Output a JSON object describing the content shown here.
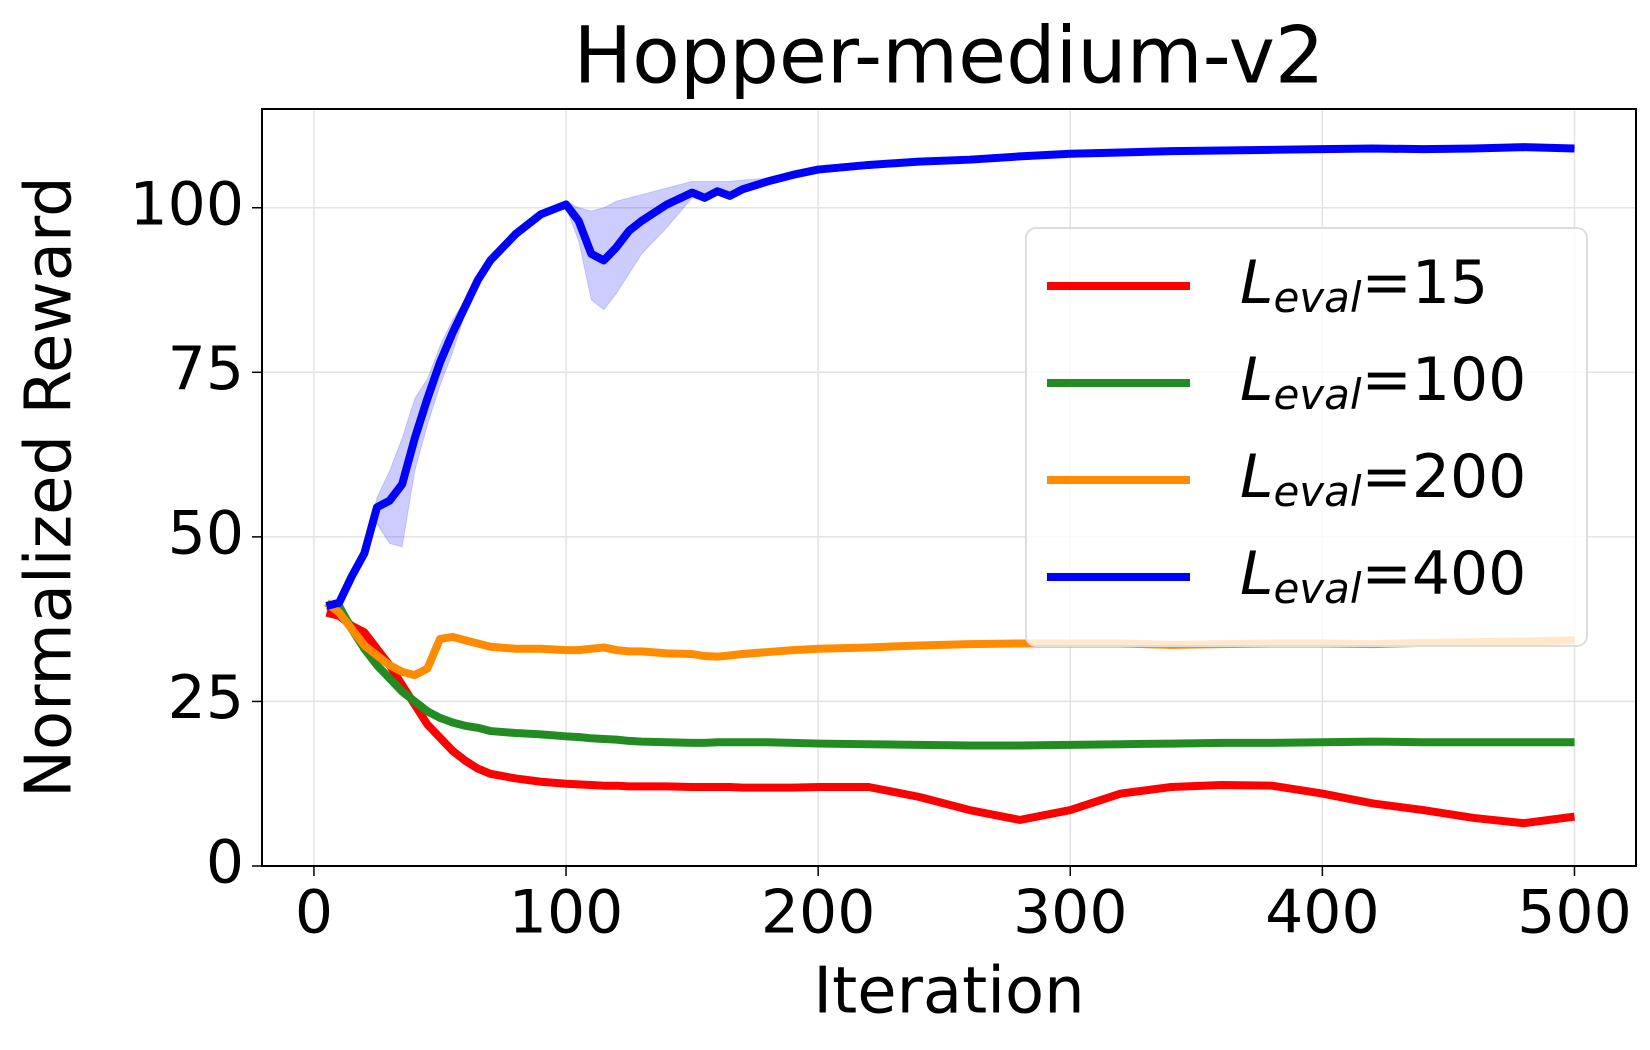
{
  "chart_data": {
    "type": "line",
    "title": "Hopper-medium-v2",
    "xlabel": "Iteration",
    "ylabel": "Normalized Reward",
    "x": [
      5,
      10,
      15,
      20,
      25,
      30,
      35,
      40,
      45,
      50,
      55,
      60,
      65,
      70,
      80,
      90,
      100,
      105,
      110,
      115,
      120,
      125,
      130,
      140,
      150,
      155,
      160,
      165,
      170,
      180,
      190,
      200,
      220,
      240,
      260,
      280,
      300,
      320,
      340,
      360,
      380,
      400,
      420,
      440,
      460,
      480,
      500
    ],
    "series": [
      {
        "name": "L_eval=15",
        "color": "#ff0000",
        "values": [
          38.5,
          38,
          36.5,
          35.5,
          33,
          30.5,
          27.5,
          24.5,
          21.5,
          19.5,
          17.5,
          16,
          14.8,
          14,
          13.3,
          12.8,
          12.5,
          12.4,
          12.3,
          12.2,
          12.2,
          12.1,
          12.1,
          12.1,
          12,
          12,
          12,
          12,
          11.9,
          11.9,
          11.9,
          12,
          12,
          10.5,
          8.5,
          7,
          8.5,
          11,
          12,
          12.3,
          12.2,
          11,
          9.5,
          8.5,
          7.3,
          6.5,
          7.5
        ]
      },
      {
        "name": "L_eval=100",
        "color": "#228b22",
        "values": [
          39.5,
          39.5,
          36,
          33,
          30.5,
          28.5,
          26.5,
          25,
          23.5,
          22.5,
          21.8,
          21.3,
          21,
          20.5,
          20.2,
          20,
          19.7,
          19.6,
          19.4,
          19.3,
          19.2,
          19,
          18.9,
          18.8,
          18.7,
          18.7,
          18.8,
          18.8,
          18.8,
          18.8,
          18.7,
          18.6,
          18.5,
          18.4,
          18.3,
          18.3,
          18.4,
          18.5,
          18.6,
          18.7,
          18.7,
          18.8,
          18.9,
          18.8,
          18.8,
          18.8,
          18.8
        ]
      },
      {
        "name": "L_eval=200",
        "color": "#ff8c00",
        "values": [
          40,
          38.5,
          36,
          33.5,
          32,
          30.5,
          29.5,
          29,
          30,
          34.5,
          34.8,
          34.3,
          33.8,
          33.3,
          33,
          33,
          32.8,
          32.8,
          33,
          33.2,
          32.8,
          32.6,
          32.6,
          32.3,
          32.2,
          31.9,
          31.8,
          32,
          32.2,
          32.5,
          32.8,
          33,
          33.2,
          33.5,
          33.7,
          33.8,
          33.8,
          33.8,
          33.6,
          33.7,
          33.8,
          33.8,
          33.7,
          33.9,
          34,
          34.1,
          34.3
        ]
      },
      {
        "name": "L_eval=400",
        "color": "#0000ff",
        "values": [
          39.5,
          40,
          44,
          47.5,
          54.5,
          55.5,
          58,
          65,
          71,
          76.5,
          81,
          85,
          89,
          92,
          96,
          99,
          100.5,
          98,
          93,
          92,
          94,
          96.5,
          98,
          100.5,
          102.3,
          101.5,
          102.5,
          101.8,
          102.8,
          104,
          105,
          105.8,
          106.5,
          107,
          107.3,
          107.8,
          108.2,
          108.4,
          108.6,
          108.7,
          108.8,
          108.9,
          109,
          108.9,
          109,
          109.2,
          109
        ],
        "lower": [
          39.5,
          40,
          44,
          47.5,
          52,
          49,
          48.5,
          60,
          67,
          73,
          78,
          84,
          88,
          91.5,
          95.5,
          98.8,
          100,
          95,
          86,
          84.5,
          87,
          90,
          93,
          97,
          101.5,
          101,
          102,
          101.5,
          102.5,
          103.8,
          104.9,
          105.7,
          106.4,
          106.9,
          107.2,
          107.7,
          108.1,
          108.3,
          108.5,
          108.6,
          108.7,
          108.8,
          108.9,
          108.8,
          108.9,
          109.1,
          108.9
        ],
        "upper": [
          39.5,
          40,
          44,
          47.5,
          56,
          60,
          65,
          71,
          74,
          79,
          83,
          86,
          89.5,
          92.5,
          96.5,
          99.5,
          101,
          100,
          99.5,
          100,
          101,
          101.5,
          102,
          103,
          104,
          104,
          104,
          104,
          104.2,
          104.5,
          105.2,
          106,
          106.7,
          107.2,
          107.5,
          108,
          108.4,
          108.6,
          108.8,
          108.9,
          109,
          109.1,
          109.2,
          109.1,
          109.2,
          109.4,
          109.2
        ]
      }
    ],
    "xlim": [
      -20.6,
      524.4
    ],
    "ylim": [
      0,
      115
    ],
    "xticks": [
      0,
      100,
      200,
      300,
      400,
      500
    ],
    "yticks": [
      0,
      25,
      50,
      75,
      100
    ],
    "grid": true,
    "legend": "upper right"
  }
}
